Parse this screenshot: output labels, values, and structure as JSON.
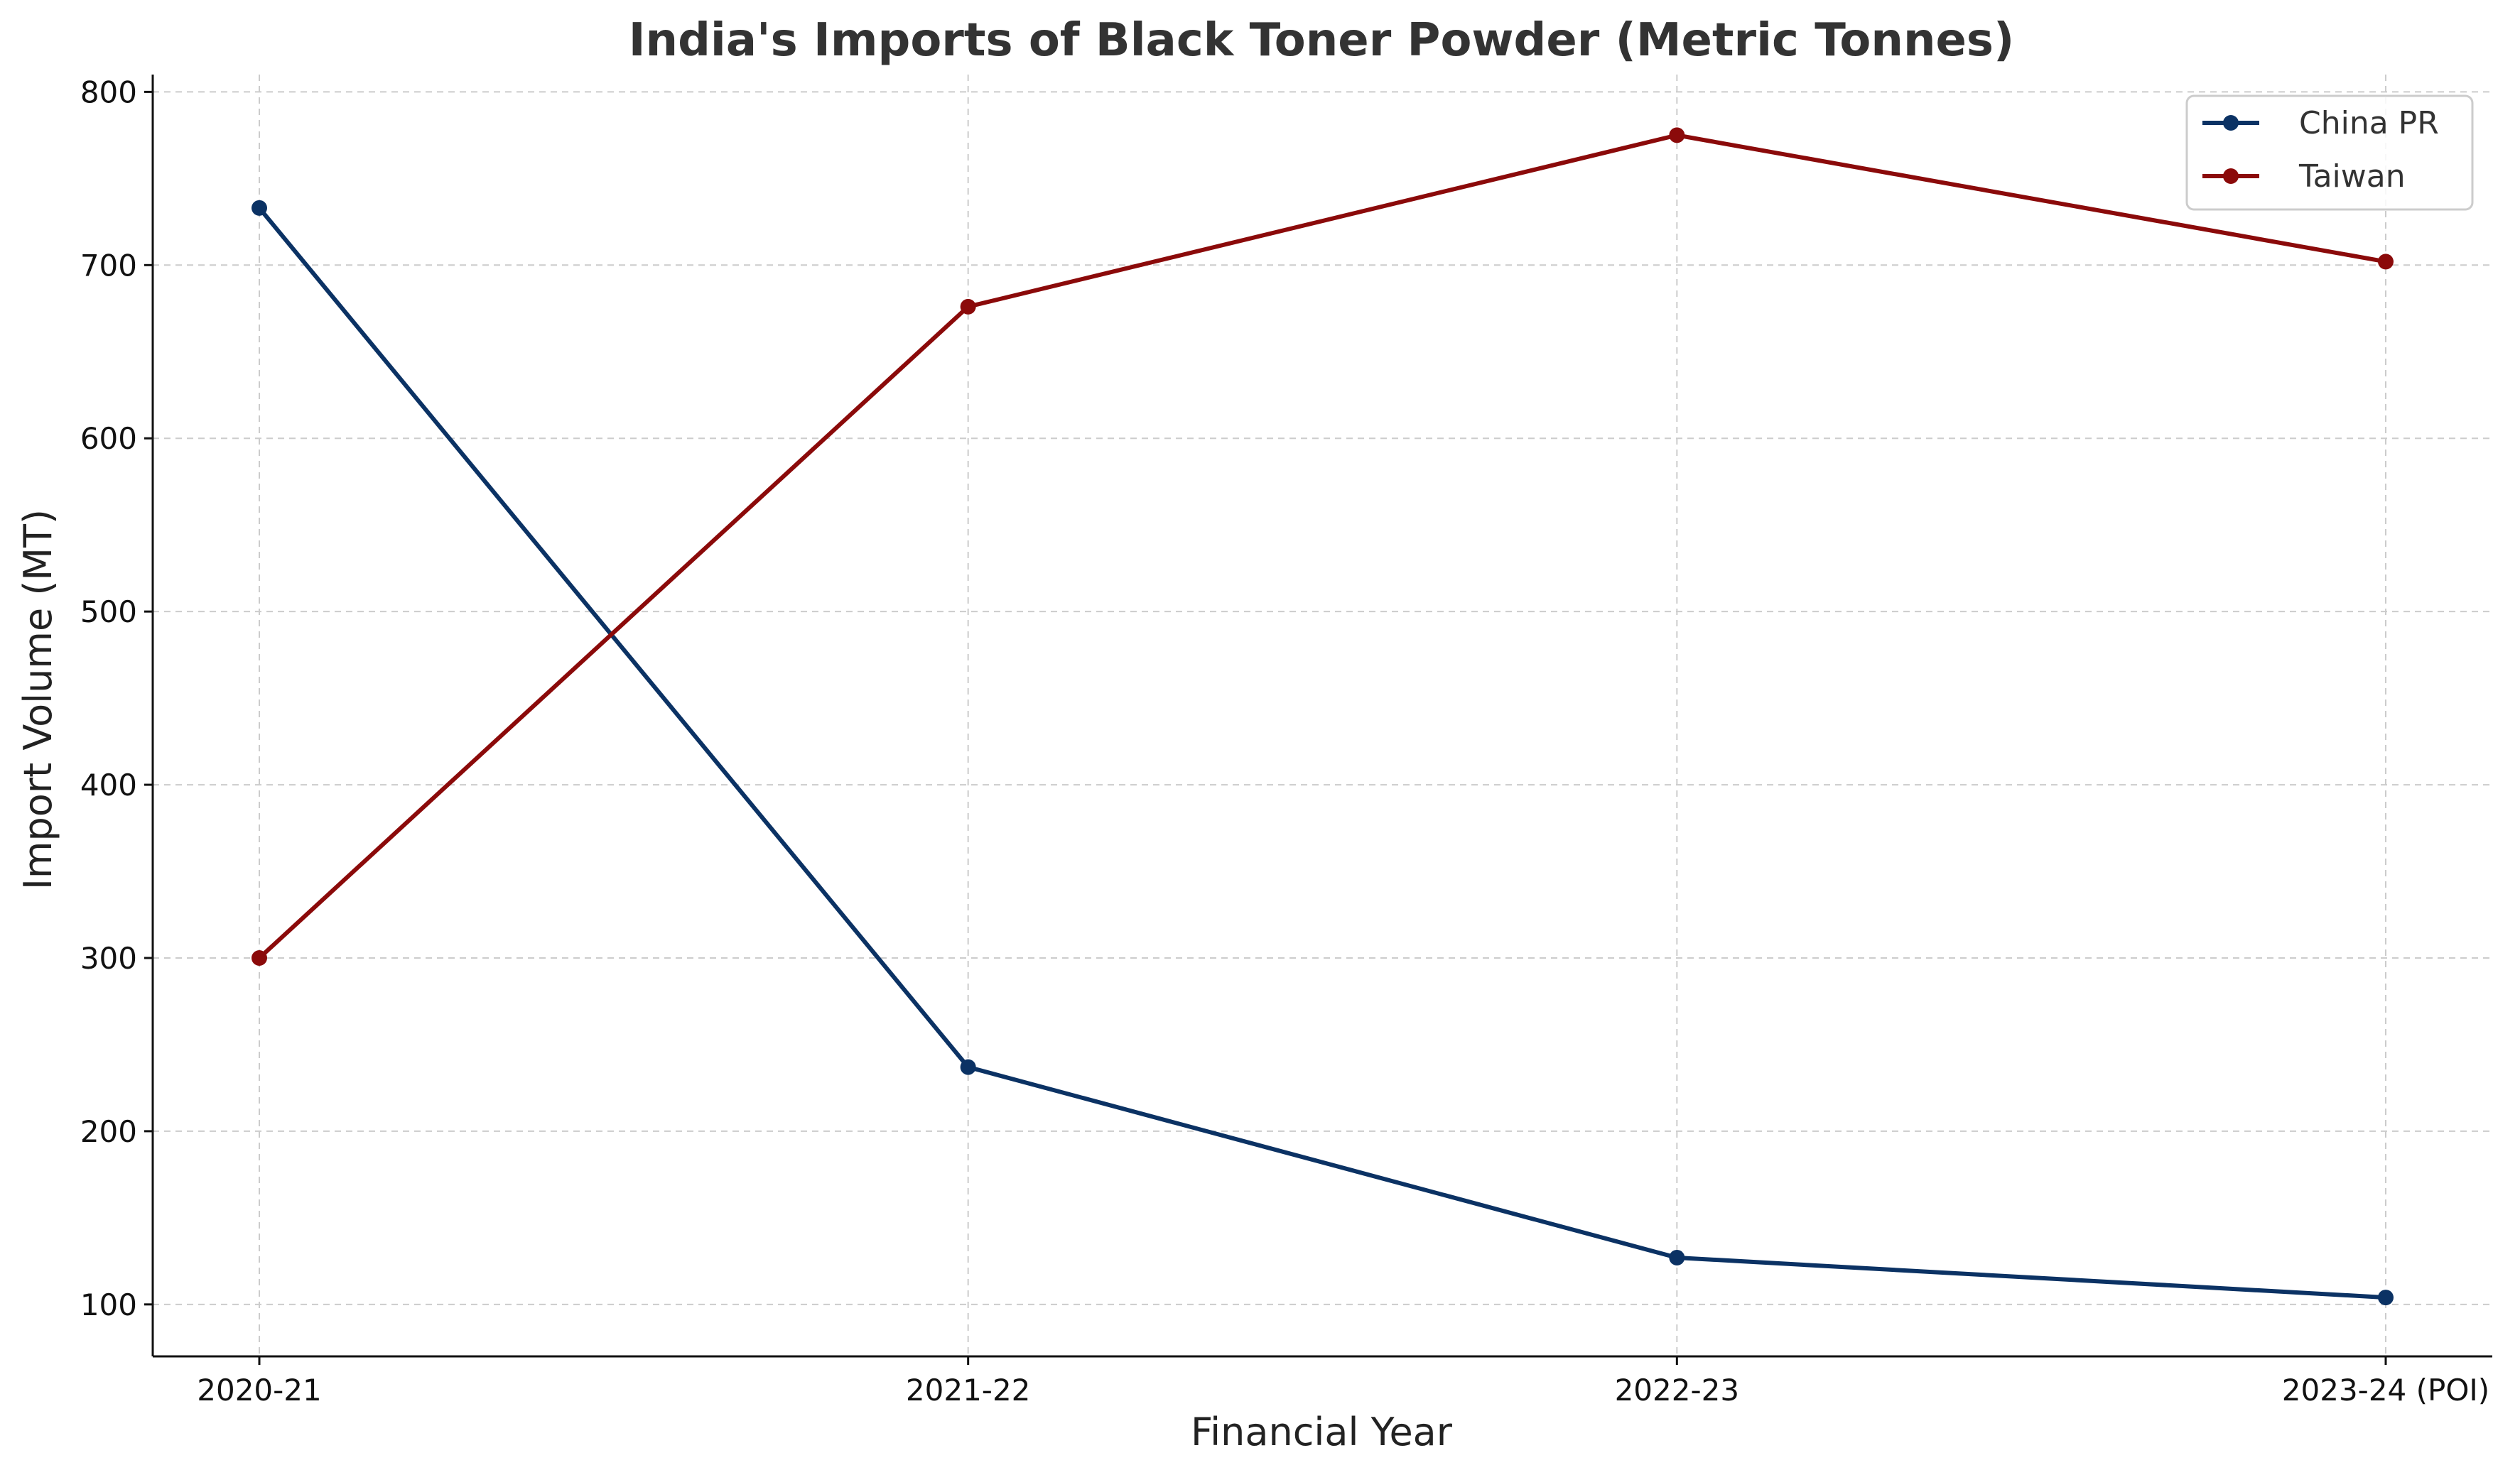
{
  "chart_data": {
    "type": "line",
    "title": "India's Imports of Black Toner Powder (Metric Tonnes)",
    "xlabel": "Financial Year",
    "ylabel": "Import Volume (MT)",
    "categories": [
      "2020-21",
      "2021-22",
      "2022-23",
      "2023-24 (POI)"
    ],
    "ylim": [
      70,
      810
    ],
    "yticks": [
      100,
      200,
      300,
      400,
      500,
      600,
      700,
      800
    ],
    "grid": true,
    "legend_position": "top-right",
    "series": [
      {
        "name": "China PR",
        "color": "#0b3264",
        "values": [
          733,
          237,
          127,
          104
        ]
      },
      {
        "name": "Taiwan",
        "color": "#8b0a0a",
        "values": [
          300,
          676,
          775,
          702
        ]
      }
    ]
  }
}
